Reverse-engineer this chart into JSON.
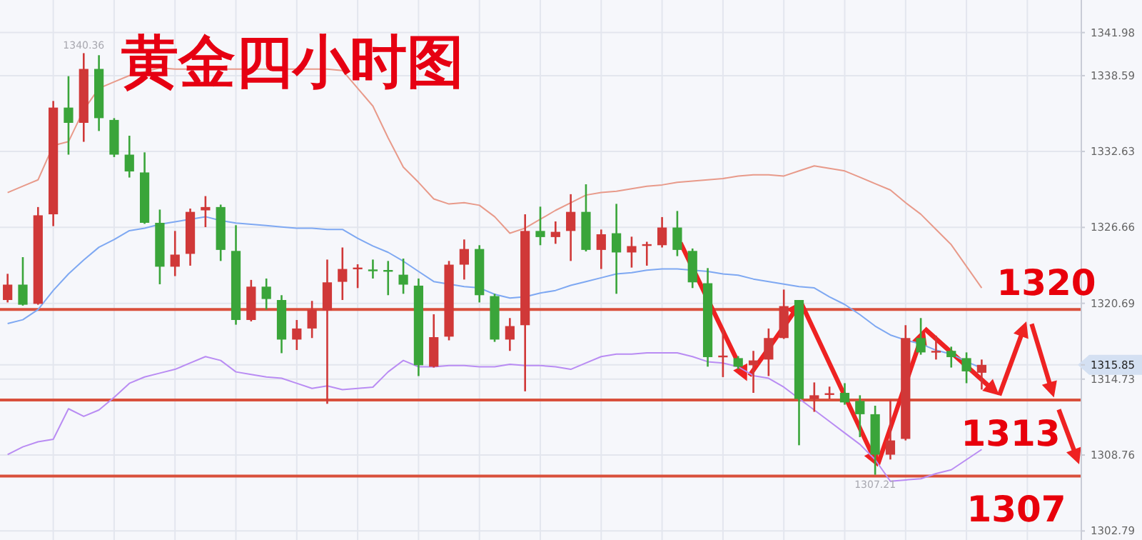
{
  "chart_data": {
    "type": "candlestick",
    "title": "黄金四小时图",
    "categories": [
      null,
      null,
      null,
      null,
      null,
      null,
      null,
      null,
      null,
      null,
      null,
      null,
      null,
      null,
      null,
      null,
      null,
      null,
      null,
      null,
      null,
      null,
      null,
      null,
      null,
      null,
      null,
      null,
      null,
      null,
      null,
      null,
      null,
      null,
      null,
      null,
      null,
      null,
      null,
      null,
      null,
      null,
      null,
      null,
      null,
      null,
      null,
      null,
      null,
      null,
      null,
      null,
      null,
      null,
      null,
      null,
      null,
      null,
      null,
      null,
      null,
      null,
      null,
      null,
      null,
      null,
      null,
      null,
      null,
      null,
      null
    ],
    "ylim": [
      1302.08,
      1344.54
    ],
    "yticks": [
      1302.79,
      1308.76,
      1314.73,
      1315.85,
      1320.69,
      1326.66,
      1332.63,
      1338.59,
      1341.98
    ],
    "grid": true,
    "ohlc": [
      [
        1320.95,
        1323.01,
        1320.76,
        1322.16
      ],
      [
        1322.16,
        1324.32,
        1320.51,
        1320.58
      ],
      [
        1320.65,
        1328.26,
        1320.58,
        1327.61
      ],
      [
        1327.69,
        1336.6,
        1326.76,
        1336.08
      ],
      [
        1336.08,
        1338.55,
        1332.38,
        1334.88
      ],
      [
        1334.88,
        1340.36,
        1333.39,
        1339.12
      ],
      [
        1339.12,
        1340.2,
        1334.24,
        1335.25
      ],
      [
        1335.11,
        1335.25,
        1332.19,
        1332.38
      ],
      [
        1332.38,
        1333.87,
        1330.58,
        1331.06
      ],
      [
        1330.98,
        1332.56,
        1326.94,
        1327.02
      ],
      [
        1327.02,
        1328.06,
        1322.19,
        1323.57
      ],
      [
        1323.57,
        1326.38,
        1322.83,
        1324.52
      ],
      [
        1324.58,
        1328.14,
        1323.65,
        1327.88
      ],
      [
        1328.0,
        1329.12,
        1326.68,
        1328.26
      ],
      [
        1328.26,
        1328.45,
        1324.02,
        1324.89
      ],
      [
        1324.81,
        1326.83,
        1319.01,
        1319.38
      ],
      [
        1319.38,
        1322.53,
        1319.27,
        1322.0
      ],
      [
        1322.0,
        1322.64,
        1320.2,
        1321.03
      ],
      [
        1320.95,
        1321.33,
        1316.77,
        1317.84
      ],
      [
        1317.84,
        1319.38,
        1317.02,
        1318.71
      ],
      [
        1318.71,
        1320.88,
        1317.96,
        1320.2
      ],
      [
        1320.14,
        1324.13,
        1312.79,
        1322.34
      ],
      [
        1322.38,
        1325.08,
        1320.95,
        1323.39
      ],
      [
        1323.39,
        1323.76,
        1321.89,
        1323.5
      ],
      [
        1323.35,
        1324.13,
        1322.64,
        1323.23
      ],
      [
        1323.31,
        1324.02,
        1321.33,
        1323.2
      ],
      [
        1322.94,
        1324.21,
        1321.44,
        1322.16
      ],
      [
        1322.08,
        1322.64,
        1314.97,
        1315.82
      ],
      [
        1315.71,
        1319.83,
        1315.64,
        1318.03
      ],
      [
        1318.07,
        1324.02,
        1317.78,
        1323.73
      ],
      [
        1323.73,
        1325.71,
        1322.56,
        1324.96
      ],
      [
        1324.96,
        1325.26,
        1320.76,
        1321.33
      ],
      [
        1321.26,
        1321.44,
        1317.66,
        1317.84
      ],
      [
        1317.84,
        1319.53,
        1316.95,
        1318.9
      ],
      [
        1318.97,
        1327.69,
        1313.77,
        1326.38
      ],
      [
        1326.38,
        1328.29,
        1325.26,
        1325.9
      ],
      [
        1325.9,
        1327.13,
        1325.37,
        1326.31
      ],
      [
        1326.38,
        1329.27,
        1324.02,
        1327.88
      ],
      [
        1327.88,
        1330.05,
        1324.77,
        1324.89
      ],
      [
        1324.89,
        1326.49,
        1323.39,
        1326.12
      ],
      [
        1326.2,
        1328.51,
        1321.44,
        1324.69
      ],
      [
        1324.69,
        1325.93,
        1323.5,
        1325.19
      ],
      [
        1325.22,
        1325.53,
        1323.65,
        1325.34
      ],
      [
        1325.26,
        1327.47,
        1325.08,
        1326.65
      ],
      [
        1326.65,
        1327.95,
        1324.4,
        1324.89
      ],
      [
        1324.81,
        1325.0,
        1321.89,
        1322.34
      ],
      [
        1322.27,
        1323.46,
        1315.71,
        1316.46
      ],
      [
        1316.46,
        1318.71,
        1314.89,
        1316.58
      ],
      [
        1316.38,
        1316.54,
        1315.53,
        1315.71
      ],
      [
        1315.82,
        1316.95,
        1313.65,
        1316.2
      ],
      [
        1316.27,
        1318.71,
        1314.97,
        1317.96
      ],
      [
        1317.96,
        1321.77,
        1317.89,
        1320.47
      ],
      [
        1320.95,
        1320.95,
        1309.53,
        1313.17
      ],
      [
        1313.17,
        1314.47,
        1312.16,
        1313.46
      ],
      [
        1313.51,
        1314.14,
        1313.17,
        1313.62
      ],
      [
        1313.65,
        1314.41,
        1312.72,
        1312.9
      ],
      [
        1313.01,
        1313.46,
        1310.17,
        1311.97
      ],
      [
        1311.97,
        1312.64,
        1307.21,
        1308.79
      ],
      [
        1308.79,
        1313.09,
        1308.41,
        1309.91
      ],
      [
        1310.03,
        1318.97,
        1309.91,
        1317.96
      ],
      [
        1317.96,
        1319.53,
        1316.65,
        1316.83
      ],
      [
        1316.83,
        1318.15,
        1316.27,
        1316.95
      ],
      [
        1316.95,
        1317.28,
        1315.64,
        1316.46
      ],
      [
        1316.38,
        1316.83,
        1314.41,
        1315.34
      ],
      [
        1315.23,
        1316.27,
        1313.91,
        1315.85
      ],
      null,
      null,
      null,
      null,
      null,
      null
    ],
    "colors": [
      "#d03838",
      "#3aa53a",
      "#d03838",
      "#d03838",
      "#3aa53a",
      "#d03838",
      "#3aa53a",
      "#3aa53a",
      "#3aa53a",
      "#3aa53a",
      "#3aa53a",
      "#d03838",
      "#d03838",
      "#d03838",
      "#3aa53a",
      "#3aa53a",
      "#d03838",
      "#3aa53a",
      "#3aa53a",
      "#d03838",
      "#d03838",
      "#d03838",
      "#d03838",
      "#d03838",
      "#3aa53a",
      "#3aa53a",
      "#3aa53a",
      "#3aa53a",
      "#d03838",
      "#d03838",
      "#d03838",
      "#3aa53a",
      "#3aa53a",
      "#d03838",
      "#d03838",
      "#3aa53a",
      "#d03838",
      "#d03838",
      "#3aa53a",
      "#d03838",
      "#3aa53a",
      "#d03838",
      "#d03838",
      "#d03838",
      "#3aa53a",
      "#3aa53a",
      "#3aa53a",
      "#d03838",
      "#3aa53a",
      "#d03838",
      "#d03838",
      "#d03838",
      "#3aa53a",
      "#d03838",
      "#d03838",
      "#3aa53a",
      "#3aa53a",
      "#3aa53a",
      "#d03838",
      "#d03838",
      "#3aa53a",
      "#d03838",
      "#3aa53a",
      "#3aa53a",
      "#d03838",
      null,
      null,
      null,
      null,
      null,
      null
    ],
    "series": [
      {
        "type": "line",
        "color": "#e89a8a",
        "values": [
          1329.4,
          1329.9,
          1330.4,
          1333.1,
          1333.4,
          1335.9,
          1337.6,
          1338.1,
          1338.6,
          1338.9,
          1339.2,
          1339.1,
          1339.1,
          1339.1,
          1339.1,
          1339.1,
          1339.1,
          1339.1,
          1339.1,
          1339.1,
          1339.1,
          1339.1,
          1339.0,
          1337.6,
          1336.2,
          1333.7,
          1331.4,
          1330.2,
          1328.9,
          1328.5,
          1328.6,
          1328.4,
          1327.5,
          1326.2,
          1326.6,
          1327.3,
          1328.0,
          1328.6,
          1329.2,
          1329.4,
          1329.5,
          1329.7,
          1329.9,
          1330.0,
          1330.2,
          1330.3,
          1330.4,
          1330.5,
          1330.7,
          1330.8,
          1330.8,
          1330.7,
          1331.1,
          1331.5,
          1331.3,
          1331.1,
          1330.6,
          1330.1,
          1329.6,
          1328.6,
          1327.7,
          1326.5,
          1325.3,
          1323.6,
          1321.9,
          null,
          null,
          null,
          null,
          null,
          null
        ]
      },
      {
        "type": "line",
        "color": "#7ea8f2",
        "values": [
          1319.1,
          1319.4,
          1320.2,
          1321.7,
          1323.0,
          1324.1,
          1325.1,
          1325.7,
          1326.4,
          1326.6,
          1326.9,
          1327.1,
          1327.3,
          1327.5,
          1327.2,
          1327.0,
          1326.9,
          1326.8,
          1326.7,
          1326.6,
          1326.6,
          1326.5,
          1326.5,
          1325.8,
          1325.2,
          1324.7,
          1324.0,
          1323.2,
          1322.4,
          1322.2,
          1322.0,
          1321.9,
          1321.4,
          1321.1,
          1321.2,
          1321.5,
          1321.7,
          1322.1,
          1322.4,
          1322.7,
          1323.0,
          1323.1,
          1323.3,
          1323.4,
          1323.4,
          1323.3,
          1323.2,
          1323.0,
          1322.9,
          1322.6,
          1322.4,
          1322.2,
          1322.0,
          1321.9,
          1321.2,
          1320.6,
          1319.8,
          1318.9,
          1318.2,
          1317.8,
          1317.5,
          1317.0,
          1316.7,
          1316.1,
          1315.6,
          null,
          null,
          null,
          null,
          null,
          null
        ]
      },
      {
        "type": "line",
        "color": "#b98cf3",
        "values": [
          1308.8,
          1309.4,
          1309.8,
          1310.0,
          1312.4,
          1311.8,
          1312.3,
          1313.3,
          1314.4,
          1314.9,
          1315.2,
          1315.5,
          1316.0,
          1316.5,
          1316.2,
          1315.3,
          1315.1,
          1314.9,
          1314.8,
          1314.4,
          1314.0,
          1314.2,
          1313.9,
          1314.0,
          1314.1,
          1315.3,
          1316.2,
          1315.7,
          1315.7,
          1315.8,
          1315.8,
          1315.7,
          1315.7,
          1315.9,
          1315.8,
          1315.8,
          1315.7,
          1315.5,
          1316.0,
          1316.5,
          1316.7,
          1316.7,
          1316.8,
          1316.8,
          1316.8,
          1316.5,
          1316.1,
          1316.0,
          1315.7,
          1315.0,
          1314.8,
          1314.1,
          1313.2,
          1312.3,
          1311.4,
          1310.5,
          1309.6,
          1308.4,
          1306.7,
          1306.8,
          1306.9,
          1307.3,
          1307.6,
          1308.4,
          1309.2,
          null,
          null,
          null,
          null,
          null,
          null
        ]
      }
    ],
    "ref_lines": [
      {
        "axis": "y",
        "value": 1320.2,
        "label": "1320",
        "color": "#d9503c"
      },
      {
        "axis": "y",
        "value": 1313.09,
        "label": "1313",
        "color": "#d9503c"
      },
      {
        "axis": "y",
        "value": 1307.11,
        "label": "1307",
        "color": "#d9503c"
      }
    ],
    "annotations": [
      "1340.36",
      {
        "text": "1307.21",
        "y": 1307.21
      }
    ]
  }
}
